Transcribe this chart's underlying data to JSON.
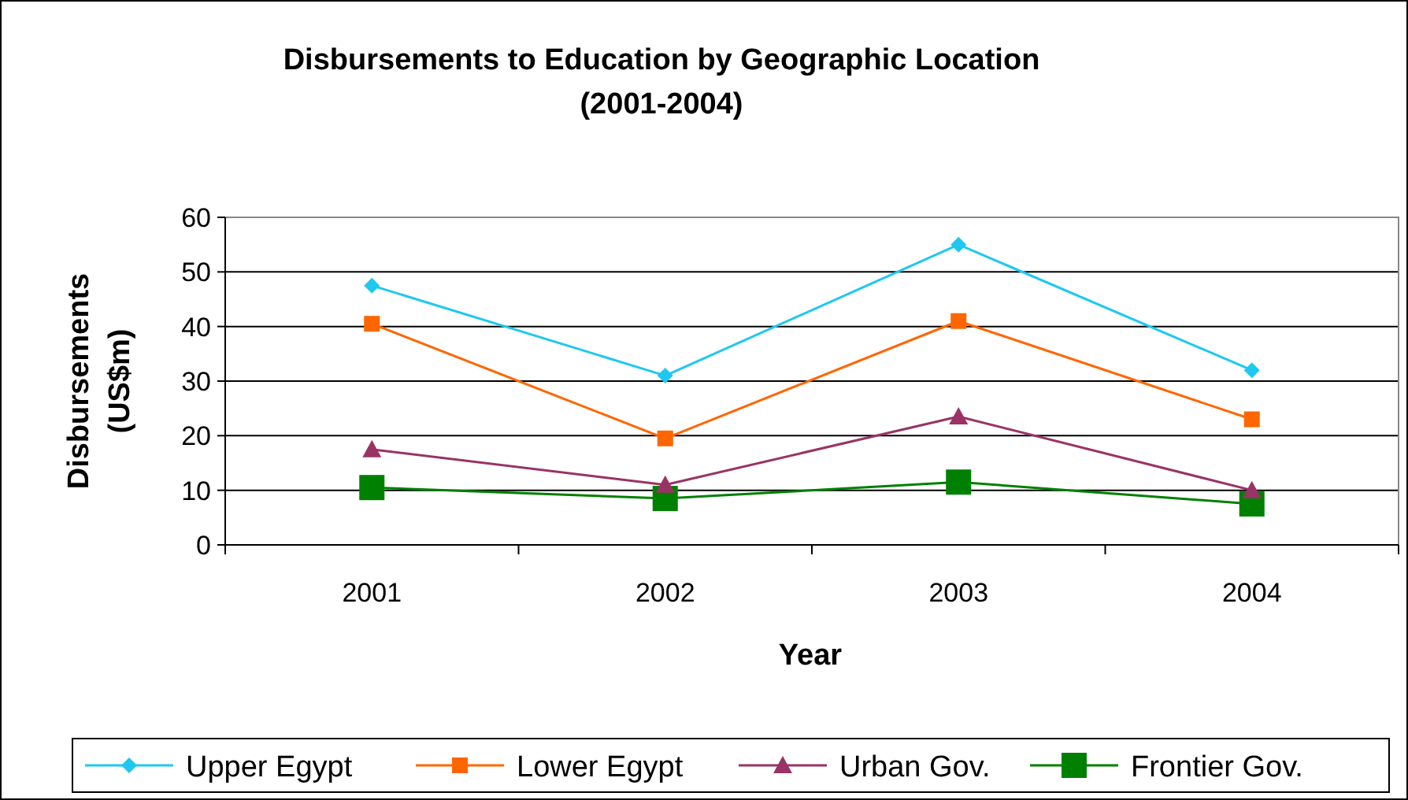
{
  "chart_data": {
    "type": "line",
    "title": "Disbursements to Education by Geographic Location\n(2001-2004)",
    "xlabel": "Year",
    "ylabel": "Disbursements\n(US$m)",
    "categories": [
      "2001",
      "2002",
      "2003",
      "2004"
    ],
    "series": [
      {
        "name": "Upper Egypt",
        "color": "#1ec8f0",
        "marker": "diamond",
        "values": [
          47.5,
          31,
          55,
          32
        ]
      },
      {
        "name": "Lower Egypt",
        "color": "#ff6600",
        "marker": "square",
        "values": [
          40.5,
          19.5,
          41,
          23
        ]
      },
      {
        "name": "Urban Gov.",
        "color": "#993366",
        "marker": "triangle",
        "values": [
          17.5,
          11,
          23.5,
          10
        ]
      },
      {
        "name": "Frontier Gov.",
        "color": "#008000",
        "marker": "square",
        "values": [
          10.5,
          8.5,
          11.5,
          7.5
        ]
      }
    ],
    "ylim": [
      0,
      60
    ],
    "yticks": [
      0,
      10,
      20,
      30,
      40,
      50,
      60
    ],
    "grid": "y",
    "legend": "bottom"
  }
}
